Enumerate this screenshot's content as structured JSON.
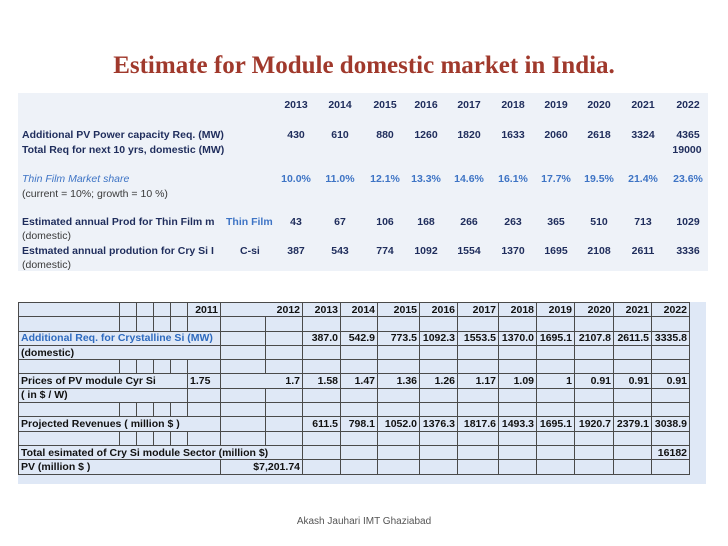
{
  "title": "Estimate for Module domestic market in India.",
  "footer": "Akash Jauhari IMT Ghaziabad",
  "upper": {
    "years": [
      "2013",
      "2014",
      "2015",
      "2016",
      "2017",
      "2018",
      "2019",
      "2020",
      "2021",
      "2022"
    ],
    "row_add_pv": {
      "label": "Additional PV Power capacity Req. (MW)",
      "values": [
        "430",
        "610",
        "880",
        "1260",
        "1820",
        "1633",
        "2060",
        "2618",
        "3324",
        "4365"
      ]
    },
    "row_total": {
      "label": "Total Req for next 10 yrs, domestic (MW)",
      "value": "19000"
    },
    "row_share": {
      "label": "Thin Film Market share",
      "sub": "(current = 10%; growth = 10 %)",
      "values": [
        "10.0%",
        "11.0%",
        "12.1%",
        "13.3%",
        "14.6%",
        "16.1%",
        "17.7%",
        "19.5%",
        "21.4%",
        "23.6%"
      ]
    },
    "row_thin": {
      "label": "Estimated annual Prod for Thin Film m",
      "tag": "Thin Film",
      "sub": "(domestic)",
      "values": [
        "43",
        "67",
        "106",
        "168",
        "266",
        "263",
        "365",
        "510",
        "713",
        "1029"
      ]
    },
    "row_crysi": {
      "label": "Estmated annual prodution for Cry Si I",
      "tag": "C-si",
      "sub": "(domestic)",
      "values": [
        "387",
        "543",
        "774",
        "1092",
        "1554",
        "1370",
        "1695",
        "2108",
        "2611",
        "3336"
      ]
    }
  },
  "lower": {
    "years": [
      "2011",
      "2012",
      "2013",
      "2014",
      "2015",
      "2016",
      "2017",
      "2018",
      "2019",
      "2020",
      "2021",
      "2022"
    ],
    "add_req_label": "Additional Req. for Crystalline Si (MW)",
    "add_req_values": [
      "387.0",
      "542.9",
      "773.5",
      "1092.3",
      "1553.5",
      "1370.0",
      "1695.1",
      "2107.8",
      "2611.5",
      "3335.8"
    ],
    "domestic_label": "(domestic)",
    "prices_label": "Prices of PV module Cyr Si",
    "prices_unit": "( in $ / W)",
    "prices_values": [
      "1.75",
      "1.7",
      "1.58",
      "1.47",
      "1.36",
      "1.26",
      "1.17",
      "1.09",
      "1",
      "0.91",
      "0.91",
      "0.91"
    ],
    "rev_label": "Projected Revenues ( million $ )",
    "rev_values": [
      "611.5",
      "798.1",
      "1052.0",
      "1376.3",
      "1817.6",
      "1493.3",
      "1695.1",
      "1920.7",
      "2379.1",
      "3038.9"
    ],
    "total_label": "Total esimated of Cry Si module Sector (million $)",
    "total_value": "16182",
    "pv_label": "PV (million $ )",
    "pv_value": "$7,201.74"
  }
}
